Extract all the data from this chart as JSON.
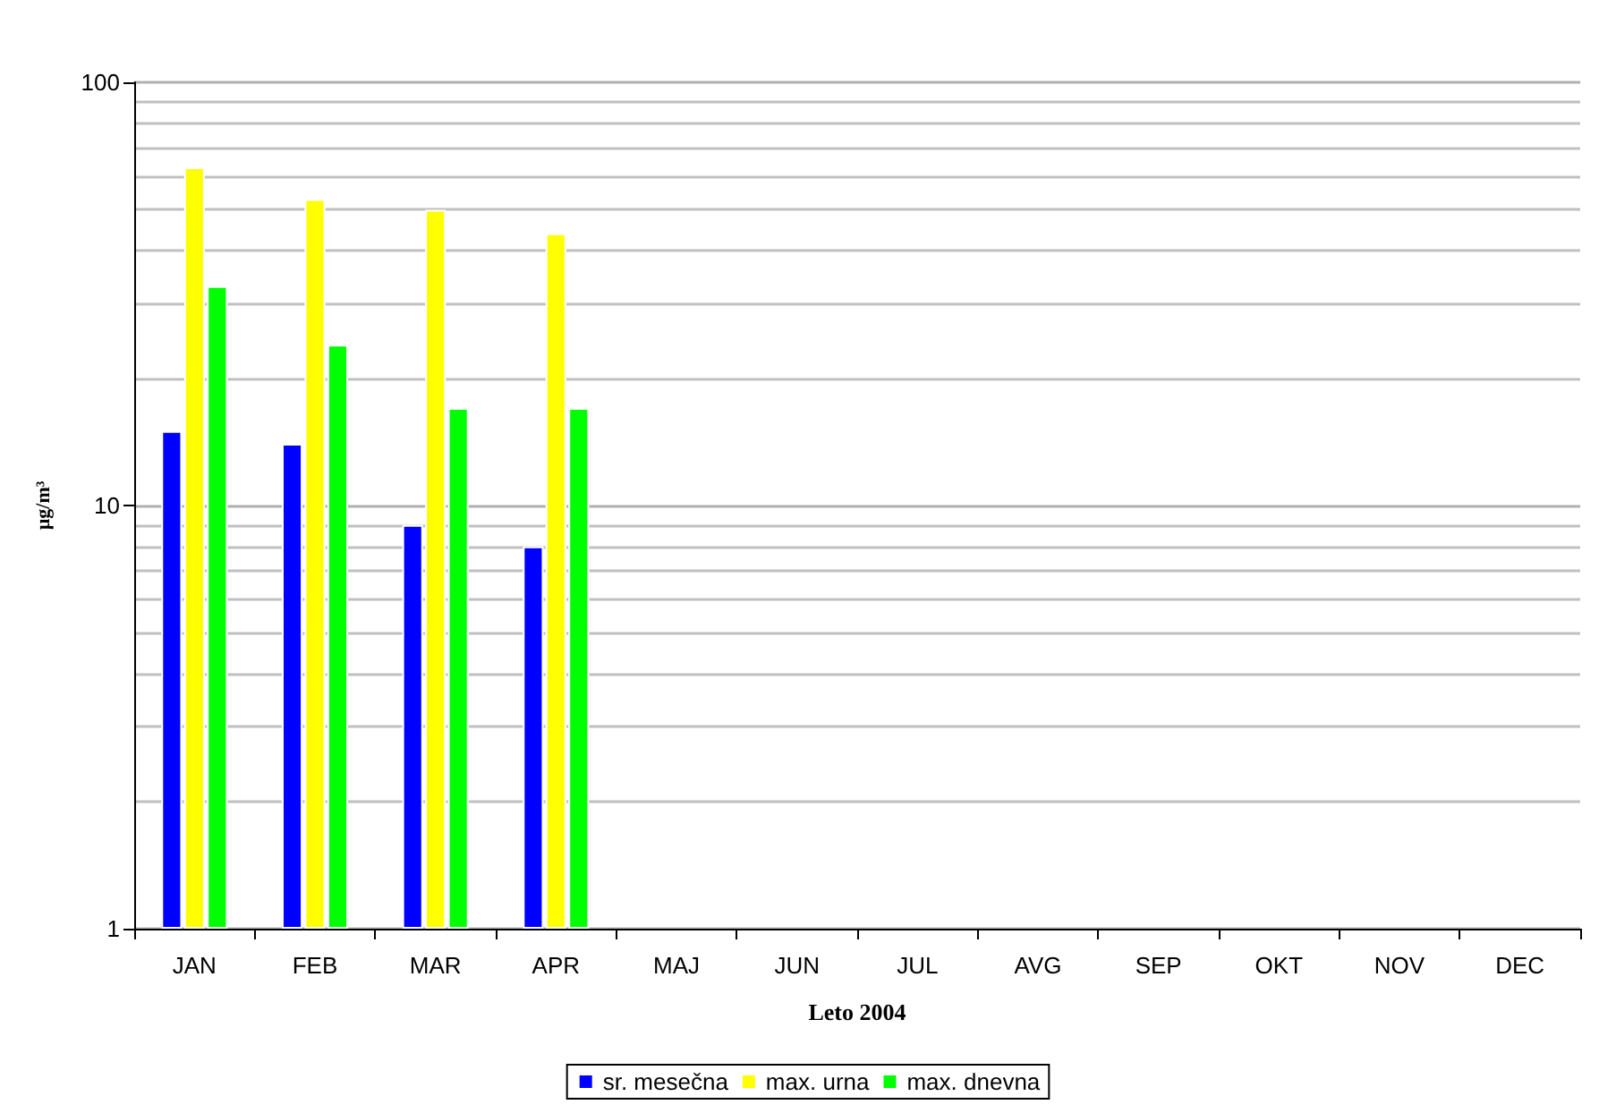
{
  "chart_data": {
    "type": "bar",
    "xlabel": "Leto 2004",
    "ylabel": "µg/m³",
    "categories": [
      "JAN",
      "FEB",
      "MAR",
      "APR",
      "MAJ",
      "JUN",
      "JUL",
      "AVG",
      "SEP",
      "OKT",
      "NOV",
      "DEC"
    ],
    "series": [
      {
        "name": "sr. mesečna",
        "color": "#0000ff",
        "values": [
          15,
          14,
          9,
          8,
          null,
          null,
          null,
          null,
          null,
          null,
          null,
          null
        ]
      },
      {
        "name": "max. urna",
        "color": "#ffff00",
        "values": [
          63,
          53,
          50,
          44,
          null,
          null,
          null,
          null,
          null,
          null,
          null,
          null
        ]
      },
      {
        "name": "max. dnevna",
        "color": "#00ff00",
        "values": [
          33,
          24,
          17,
          17,
          null,
          null,
          null,
          null,
          null,
          null,
          null,
          null
        ]
      }
    ],
    "log": "y",
    "ylim": [
      1,
      100
    ],
    "yticks": [
      1,
      10,
      100
    ],
    "grid": "y",
    "legend": "bottom"
  }
}
